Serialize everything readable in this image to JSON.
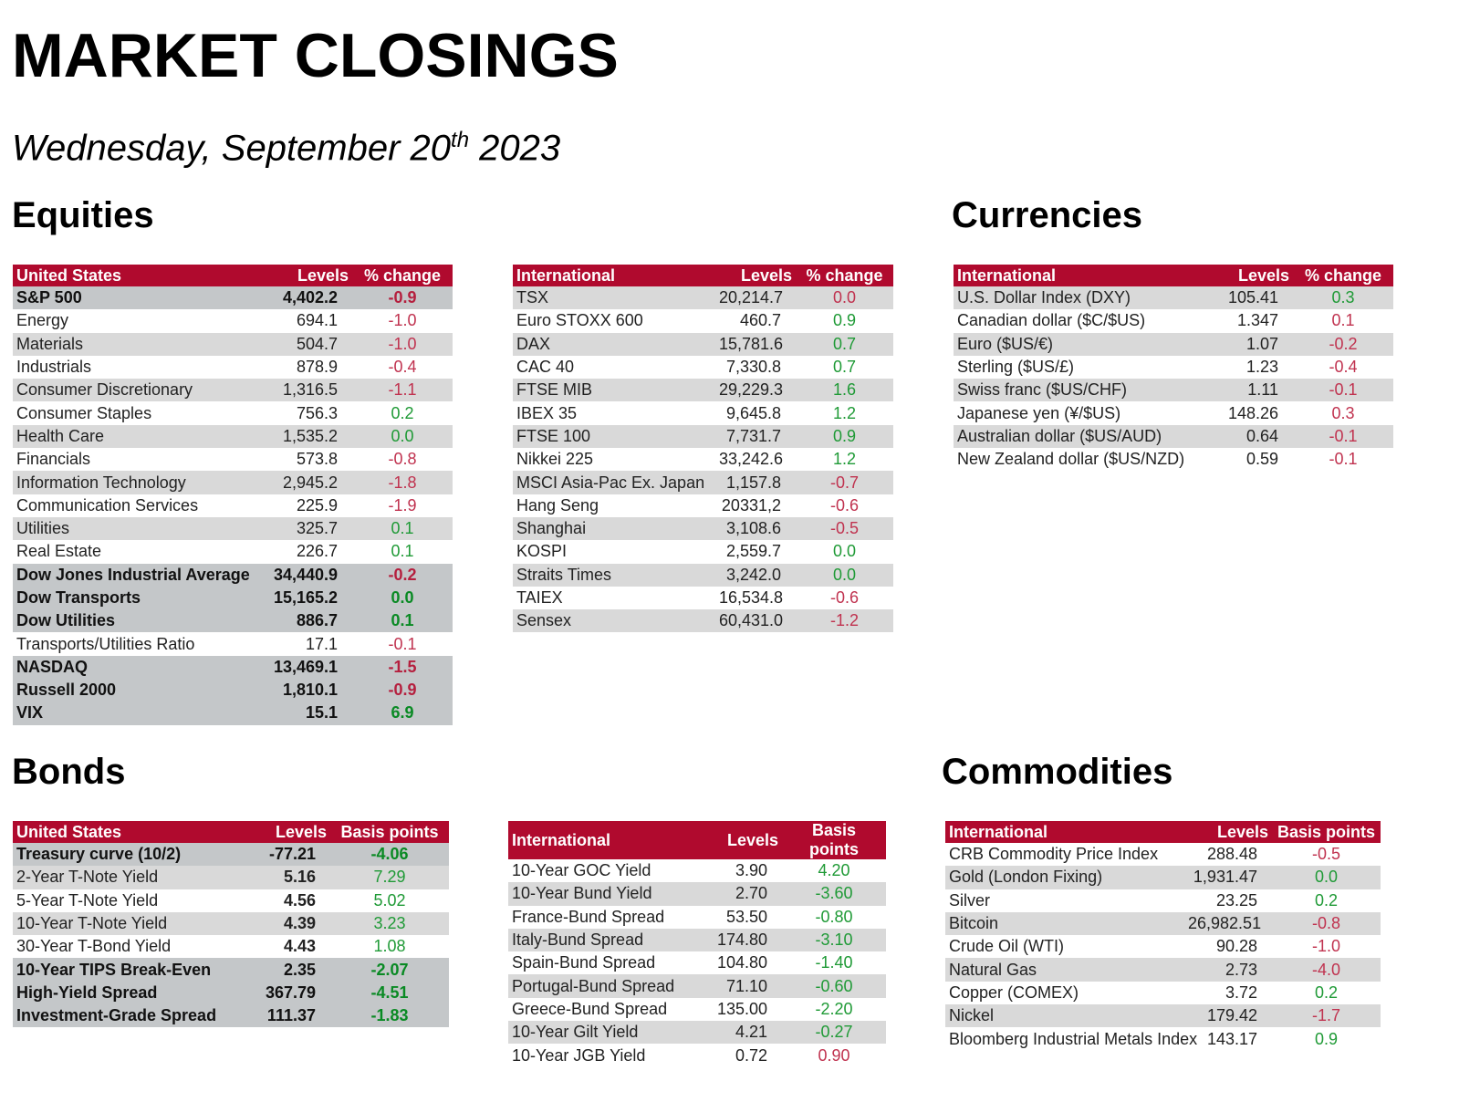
{
  "header": {
    "title": "MARKET CLOSINGS",
    "date_prefix": "Wednesday, September 20",
    "date_suffix": "th",
    "date_year": " 2023"
  },
  "sections": {
    "equities": "Equities",
    "currencies": "Currencies",
    "bonds": "Bonds",
    "commodities": "Commodities"
  },
  "colors": {
    "header_red": "#b00a2e",
    "negative": "#c0324f",
    "positive": "#1f9a36",
    "row_grey": "#d9d9d9",
    "bold_grey": "#c4c7c9"
  },
  "tables": {
    "eq_us": {
      "headers": [
        "United States",
        "Levels",
        "% change"
      ],
      "rows": [
        {
          "name": "S&P 500",
          "level": "4,402.2",
          "chg": "-0.9",
          "style": "b"
        },
        {
          "name": "Energy",
          "level": "694.1",
          "chg": "-1.0",
          "style": "w"
        },
        {
          "name": "Materials",
          "level": "504.7",
          "chg": "-1.0",
          "style": "g"
        },
        {
          "name": "Industrials",
          "level": "878.9",
          "chg": "-0.4",
          "style": "w"
        },
        {
          "name": "Consumer Discretionary",
          "level": "1,316.5",
          "chg": "-1.1",
          "style": "g"
        },
        {
          "name": "Consumer Staples",
          "level": "756.3",
          "chg": "0.2",
          "style": "w"
        },
        {
          "name": "Health Care",
          "level": "1,535.2",
          "chg": "0.0",
          "style": "g"
        },
        {
          "name": "Financials",
          "level": "573.8",
          "chg": "-0.8",
          "style": "w"
        },
        {
          "name": "Information Technology",
          "level": "2,945.2",
          "chg": "-1.8",
          "style": "g"
        },
        {
          "name": "Communication Services",
          "level": "225.9",
          "chg": "-1.9",
          "style": "w"
        },
        {
          "name": "Utilities",
          "level": "325.7",
          "chg": "0.1",
          "style": "g"
        },
        {
          "name": "Real Estate",
          "level": "226.7",
          "chg": "0.1",
          "style": "w"
        },
        {
          "name": "Dow Jones Industrial Average",
          "level": "34,440.9",
          "chg": "-0.2",
          "style": "b"
        },
        {
          "name": "Dow Transports",
          "level": "15,165.2",
          "chg": "0.0",
          "style": "b"
        },
        {
          "name": "Dow Utilities",
          "level": "886.7",
          "chg": "0.1",
          "style": "b"
        },
        {
          "name": "Transports/Utilities Ratio",
          "level": "17.1",
          "chg": "-0.1",
          "style": "w"
        },
        {
          "name": "NASDAQ",
          "level": "13,469.1",
          "chg": "-1.5",
          "style": "b"
        },
        {
          "name": "Russell 2000",
          "level": "1,810.1",
          "chg": "-0.9",
          "style": "b"
        },
        {
          "name": "VIX",
          "level": "15.1",
          "chg": "6.9",
          "style": "b"
        }
      ]
    },
    "eq_intl": {
      "headers": [
        "International",
        "Levels",
        "% change"
      ],
      "rows": [
        {
          "name": "TSX",
          "level": "20,214.7",
          "chg": "0.0",
          "style": "g",
          "tone": "neg"
        },
        {
          "name": "Euro STOXX 600",
          "level": "460.7",
          "chg": "0.9",
          "style": "w"
        },
        {
          "name": "DAX",
          "level": "15,781.6",
          "chg": "0.7",
          "style": "g"
        },
        {
          "name": "CAC 40",
          "level": "7,330.8",
          "chg": "0.7",
          "style": "w"
        },
        {
          "name": "FTSE MIB",
          "level": "29,229.3",
          "chg": "1.6",
          "style": "g"
        },
        {
          "name": "IBEX 35",
          "level": "9,645.8",
          "chg": "1.2",
          "style": "w"
        },
        {
          "name": "FTSE 100",
          "level": "7,731.7",
          "chg": "0.9",
          "style": "g"
        },
        {
          "name": "Nikkei 225",
          "level": "33,242.6",
          "chg": "1.2",
          "style": "w"
        },
        {
          "name": "MSCI Asia-Pac Ex. Japan",
          "level": "1,157.8",
          "chg": "-0.7",
          "style": "g"
        },
        {
          "name": "Hang Seng",
          "level": "20331,2",
          "chg": "-0.6",
          "style": "w"
        },
        {
          "name": "Shanghai",
          "level": "3,108.6",
          "chg": "-0.5",
          "style": "g"
        },
        {
          "name": "KOSPI",
          "level": "2,559.7",
          "chg": "0.0",
          "style": "w"
        },
        {
          "name": "Straits Times",
          "level": "3,242.0",
          "chg": "0.0",
          "style": "g"
        },
        {
          "name": "TAIEX",
          "level": "16,534.8",
          "chg": "-0.6",
          "style": "w"
        },
        {
          "name": "Sensex",
          "level": "60,431.0",
          "chg": "-1.2",
          "style": "g"
        }
      ]
    },
    "fx": {
      "headers": [
        "International",
        "Levels",
        "% change"
      ],
      "rows": [
        {
          "name": "U.S. Dollar Index (DXY)",
          "level": "105.41",
          "chg": "0.3",
          "style": "g"
        },
        {
          "name": "Canadian dollar ($C/$US)",
          "level": "1.347",
          "chg": "0.1",
          "style": "w",
          "tone": "neg"
        },
        {
          "name": "Euro ($US/€)",
          "level": "1.07",
          "chg": "-0.2",
          "style": "g"
        },
        {
          "name": "Sterling ($US/£)",
          "level": "1.23",
          "chg": "-0.4",
          "style": "w"
        },
        {
          "name": "Swiss franc ($US/CHF)",
          "level": "1.11",
          "chg": "-0.1",
          "style": "g"
        },
        {
          "name": "Japanese yen (¥/$US)",
          "level": "148.26",
          "chg": "0.3",
          "style": "w",
          "tone": "neg"
        },
        {
          "name": "Australian dollar ($US/AUD)",
          "level": "0.64",
          "chg": "-0.1",
          "style": "g"
        },
        {
          "name": "New Zealand dollar ($US/NZD)",
          "level": "0.59",
          "chg": "-0.1",
          "style": "w"
        }
      ]
    },
    "bonds_us": {
      "headers": [
        "United States",
        "Levels",
        "Basis points"
      ],
      "rows": [
        {
          "name": "Treasury curve (10/2)",
          "level": "-77.21",
          "chg": "-4.06",
          "style": "b",
          "tone": "pos"
        },
        {
          "name": "2-Year T-Note Yield",
          "level": "5.16",
          "chg": "7.29",
          "style": "g",
          "boldlvl": true
        },
        {
          "name": "5-Year T-Note Yield",
          "level": "4.56",
          "chg": "5.02",
          "style": "w",
          "boldlvl": true
        },
        {
          "name": "10-Year T-Note Yield",
          "level": "4.39",
          "chg": "3.23",
          "style": "g",
          "boldlvl": true
        },
        {
          "name": "30-Year T-Bond Yield",
          "level": "4.43",
          "chg": "1.08",
          "style": "w",
          "boldlvl": true
        },
        {
          "name": "10-Year TIPS Break-Even",
          "level": "2.35",
          "chg": "-2.07",
          "style": "b",
          "tone": "pos"
        },
        {
          "name": "High-Yield Spread",
          "level": "367.79",
          "chg": "-4.51",
          "style": "b",
          "tone": "pos"
        },
        {
          "name": "Investment-Grade Spread",
          "level": "111.37",
          "chg": "-1.83",
          "style": "b",
          "tone": "pos"
        }
      ]
    },
    "bonds_intl": {
      "headers": [
        "International",
        "Levels",
        "Basis points"
      ],
      "rows": [
        {
          "name": "10-Year GOC Yield",
          "level": "3.90",
          "chg": "4.20",
          "style": "w"
        },
        {
          "name": "10-Year Bund Yield",
          "level": "2.70",
          "chg": "-3.60",
          "style": "g",
          "tone": "pos"
        },
        {
          "name": "France-Bund Spread",
          "level": "53.50",
          "chg": "-0.80",
          "style": "w",
          "tone": "pos"
        },
        {
          "name": "Italy-Bund Spread",
          "level": "174.80",
          "chg": "-3.10",
          "style": "g",
          "tone": "pos"
        },
        {
          "name": "Spain-Bund Spread",
          "level": "104.80",
          "chg": "-1.40",
          "style": "w",
          "tone": "pos"
        },
        {
          "name": "Portugal-Bund Spread",
          "level": "71.10",
          "chg": "-0.60",
          "style": "g",
          "tone": "pos"
        },
        {
          "name": "Greece-Bund Spread",
          "level": "135.00",
          "chg": "-2.20",
          "style": "w",
          "tone": "pos"
        },
        {
          "name": "10-Year Gilt Yield",
          "level": "4.21",
          "chg": "-0.27",
          "style": "g",
          "tone": "pos"
        },
        {
          "name": "10-Year JGB Yield",
          "level": "0.72",
          "chg": "0.90",
          "style": "w",
          "tone": "neg"
        }
      ]
    },
    "commodities": {
      "headers": [
        "International",
        "Levels",
        "Basis points"
      ],
      "rows": [
        {
          "name": "CRB Commodity Price Index",
          "level": "288.48",
          "chg": "-0.5",
          "style": "w"
        },
        {
          "name": "Gold (London Fixing)",
          "level": "1,931.47",
          "chg": "0.0",
          "style": "g"
        },
        {
          "name": "Silver",
          "level": "23.25",
          "chg": "0.2",
          "style": "w"
        },
        {
          "name": "Bitcoin",
          "level": "26,982.51",
          "chg": "-0.8",
          "style": "g"
        },
        {
          "name": "Crude Oil (WTI)",
          "level": "90.28",
          "chg": "-1.0",
          "style": "w"
        },
        {
          "name": "Natural Gas",
          "level": "2.73",
          "chg": "-4.0",
          "style": "g"
        },
        {
          "name": "Copper (COMEX)",
          "level": "3.72",
          "chg": "0.2",
          "style": "w"
        },
        {
          "name": "Nickel",
          "level": "179.42",
          "chg": "-1.7",
          "style": "g"
        },
        {
          "name": "Bloomberg Industrial Metals Index",
          "level": "143.17",
          "chg": "0.9",
          "style": "w"
        }
      ]
    }
  }
}
